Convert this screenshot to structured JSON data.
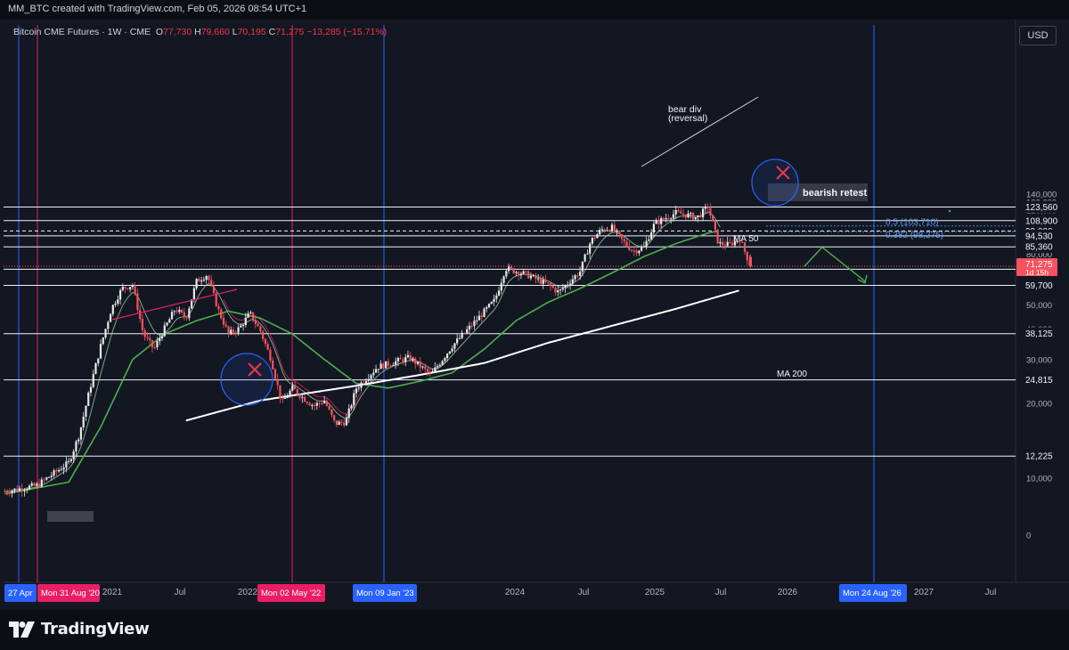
{
  "header": {
    "caption": "MM_BTC created with TradingView.com, Feb 05, 2026 08:54 UTC+1"
  },
  "legend": {
    "symbol": "Bitcoin CME Futures · 1W · CME",
    "o_label": "O",
    "o": "77,730",
    "h_label": "H",
    "h": "79,660",
    "l_label": "L",
    "l": "70,195",
    "c_label": "C",
    "c": "71,275",
    "change": "−13,285 (−15.71%)"
  },
  "currency_button": "USD",
  "brand": "TradingView",
  "colors": {
    "background": "#131722",
    "up_candle": "#e8e8e8",
    "down_candle": "#f7525f",
    "ma50": "#4caf50",
    "ma200": "#ffffff",
    "ema_fast": "#a5d6a7",
    "ema_pink": "#e91e63",
    "blue_marker": "#2962ff",
    "pink_marker": "#e91e63"
  },
  "chart_data": {
    "type": "candlestick",
    "title": "Bitcoin CME Futures · 1W · CME",
    "y_scale": "log",
    "ylim": [
      8000,
      140000
    ],
    "price_ticks": [
      "140,000",
      "130,000",
      "120,000",
      "110,000",
      "100,000",
      "90,000",
      "80,000",
      "70,000",
      "60,000",
      "50,000",
      "40,000",
      "30,000",
      "20,000",
      "10,000",
      "0"
    ],
    "x_ticks": [
      "2021",
      "Jul",
      "2022",
      "2024",
      "Jul",
      "2025",
      "Jul",
      "2026",
      "2027",
      "Jul"
    ],
    "current_price": {
      "label": "71,275",
      "countdown": "1d 15h",
      "value": 71275
    },
    "horizontal_levels": [
      {
        "label": "123,560",
        "value": 123560,
        "style": "solid"
      },
      {
        "label": "108,900",
        "value": 108900,
        "style": "solid"
      },
      {
        "label": "99,000",
        "value": 99000,
        "style": "dashed"
      },
      {
        "label": "94,530",
        "value": 94530,
        "style": "solid"
      },
      {
        "label": "85,360",
        "value": 85360,
        "style": "solid"
      },
      {
        "label": "69,325",
        "value": 69325,
        "style": "solid"
      },
      {
        "label": "59,700",
        "value": 59700,
        "style": "solid"
      },
      {
        "label": "38,125",
        "value": 38125,
        "style": "solid"
      },
      {
        "label": "24,815",
        "value": 24815,
        "style": "solid"
      },
      {
        "label": "12,225",
        "value": 12225,
        "style": "solid"
      }
    ],
    "fib_levels": [
      {
        "label": "0.5 (103,710)",
        "value": 103710
      },
      {
        "label": "0.382 (98,275)",
        "value": 98275
      }
    ],
    "date_markers": [
      {
        "label": "27 Apr",
        "color": "blue"
      },
      {
        "label": "Mon 31 Aug '20",
        "color": "pink"
      },
      {
        "label": "Mon 02 May '22",
        "color": "pink"
      },
      {
        "label": "Mon 09 Jan '23",
        "color": "blue"
      },
      {
        "label": "Mon 24 Aug '26",
        "color": "blue"
      }
    ],
    "annotations": [
      {
        "text": "bear div"
      },
      {
        "text": "(reversal)"
      },
      {
        "text": "bearish retest"
      },
      {
        "text": "MA 50"
      },
      {
        "text": "MA 200"
      }
    ],
    "price_series": {
      "name": "Bitcoin CME Futures",
      "points": [
        [
          "Apr 2020",
          8800
        ],
        [
          "Jul 2020",
          9300
        ],
        [
          "Oct 2020",
          11500
        ],
        [
          "Nov 2020",
          15000
        ],
        [
          "Dec 2020",
          23000
        ],
        [
          "Jan 2021",
          34000
        ],
        [
          "Feb 2021",
          48000
        ],
        [
          "Mar 2021",
          58000
        ],
        [
          "Apr 2021",
          60000
        ],
        [
          "May 2021",
          38000
        ],
        [
          "Jun 2021",
          33000
        ],
        [
          "Jul 2021",
          40000
        ],
        [
          "Aug 2021",
          48000
        ],
        [
          "Sep 2021",
          44000
        ],
        [
          "Oct 2021",
          62000
        ],
        [
          "Nov 2021",
          66000
        ],
        [
          "Dec 2021",
          48000
        ],
        [
          "Jan 2022",
          38000
        ],
        [
          "Feb 2022",
          40000
        ],
        [
          "Mar 2022",
          46000
        ],
        [
          "Apr 2022",
          39000
        ],
        [
          "May 2022",
          30000
        ],
        [
          "Jun 2022",
          20000
        ],
        [
          "Jul 2022",
          23000
        ],
        [
          "Aug 2022",
          21000
        ],
        [
          "Sep 2022",
          19500
        ],
        [
          "Oct 2022",
          20500
        ],
        [
          "Nov 2022",
          16500
        ],
        [
          "Dec 2022",
          16800
        ],
        [
          "Jan 2023",
          23000
        ],
        [
          "Mar 2023",
          28000
        ],
        [
          "Jun 2023",
          30500
        ],
        [
          "Aug 2023",
          26000
        ],
        [
          "Oct 2023",
          34000
        ],
        [
          "Dec 2023",
          42000
        ],
        [
          "Feb 2024",
          52000
        ],
        [
          "Mar 2024",
          70000
        ],
        [
          "May 2024",
          66000
        ],
        [
          "Jul 2024",
          60000
        ],
        [
          "Aug 2024",
          56000
        ],
        [
          "Oct 2024",
          68000
        ],
        [
          "Nov 2024",
          90000
        ],
        [
          "Dec 2024",
          100000
        ],
        [
          "Jan 2025",
          102000
        ],
        [
          "Feb 2025",
          90000
        ],
        [
          "Mar 2025",
          82000
        ],
        [
          "Apr 2025",
          85000
        ],
        [
          "May 2025",
          106000
        ],
        [
          "Jul 2025",
          117000
        ],
        [
          "Aug 2025",
          115000
        ],
        [
          "Sep 2025",
          112000
        ],
        [
          "Oct 2025",
          124000
        ],
        [
          "Nov 2025",
          88000
        ],
        [
          "Dec 2025",
          87000
        ],
        [
          "Jan 2026",
          92000
        ],
        [
          "Feb 2026",
          71275
        ]
      ]
    },
    "ma50_series": {
      "name": "MA 50",
      "points": [
        [
          "Apr 2020",
          8600
        ],
        [
          "Oct 2020",
          9600
        ],
        [
          "Jan 2021",
          16000
        ],
        [
          "Apr 2021",
          30000
        ],
        [
          "Jul 2021",
          38000
        ],
        [
          "Oct 2021",
          43000
        ],
        [
          "Jan 2022",
          47000
        ],
        [
          "Apr 2022",
          44000
        ],
        [
          "Jul 2022",
          38000
        ],
        [
          "Oct 2022",
          30000
        ],
        [
          "Jan 2023",
          24000
        ],
        [
          "Apr 2023",
          23000
        ],
        [
          "Jul 2023",
          24500
        ],
        [
          "Oct 2023",
          26500
        ],
        [
          "Jan 2024",
          33000
        ],
        [
          "Apr 2024",
          43000
        ],
        [
          "Jul 2024",
          51000
        ],
        [
          "Oct 2024",
          58000
        ],
        [
          "Jan 2025",
          67000
        ],
        [
          "Apr 2025",
          78000
        ],
        [
          "Jul 2025",
          88000
        ],
        [
          "Oct 2025",
          97000
        ],
        [
          "Nov 2025",
          99000
        ]
      ]
    },
    "ma200_series": {
      "name": "MA 200",
      "points": [
        [
          "Sep 2021",
          17000
        ],
        [
          "Apr 2022",
          20500
        ],
        [
          "Jan 2023",
          23500
        ],
        [
          "Jul 2023",
          26000
        ],
        [
          "Jan 2024",
          29000
        ],
        [
          "Jul 2024",
          35000
        ],
        [
          "Jan 2025",
          41000
        ],
        [
          "Jul 2025",
          48000
        ],
        [
          "Jan 2026",
          57000
        ]
      ]
    },
    "projection": [
      [
        "Feb 2026",
        71275
      ],
      [
        "Mar 2026",
        85000
      ],
      [
        "Jun 2026",
        62000
      ]
    ]
  }
}
